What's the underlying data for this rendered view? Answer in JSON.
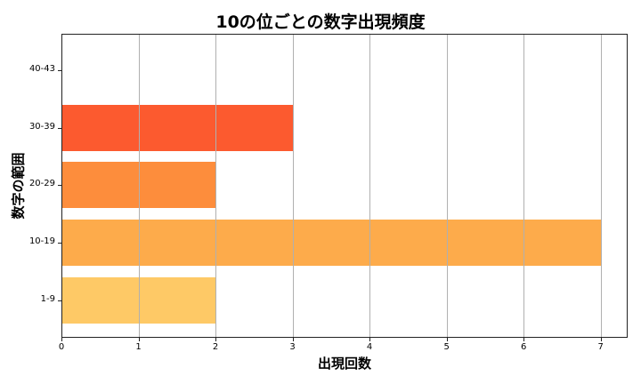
{
  "chart_data": {
    "type": "bar",
    "orientation": "horizontal",
    "title": "10の位ごとの数字出現頻度",
    "xlabel": "出現回数",
    "ylabel": "数字の範囲",
    "categories": [
      "1-9",
      "10-19",
      "20-29",
      "30-39",
      "40-43"
    ],
    "values": [
      2,
      7,
      2,
      3,
      0
    ],
    "colors": [
      "#fec966",
      "#fdab4b",
      "#fd8d3c",
      "#fc5a2f",
      "#e31a1c"
    ],
    "xlim": [
      0,
      7.35
    ],
    "xticks": [
      "0",
      "1",
      "2",
      "3",
      "4",
      "5",
      "6",
      "7"
    ],
    "grid": "x",
    "legend": null
  }
}
